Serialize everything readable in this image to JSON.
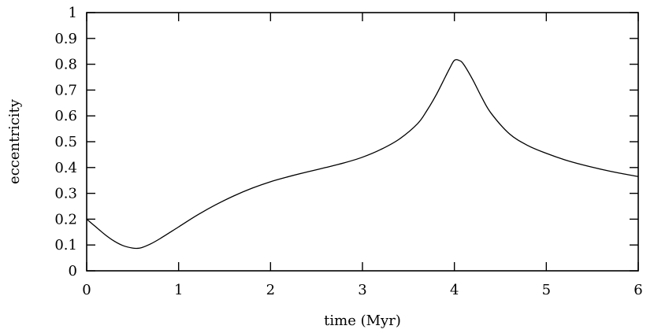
{
  "chart_data": {
    "type": "line",
    "title": "",
    "xlabel": "time (Myr)",
    "ylabel": "eccentricity",
    "xlim": [
      0,
      6
    ],
    "ylim": [
      0,
      1
    ],
    "grid": false,
    "legend": "none",
    "x_ticks": [
      "0",
      "1",
      "2",
      "3",
      "4",
      "5",
      "6"
    ],
    "y_ticks": [
      "0",
      "0.1",
      "0.2",
      "0.3",
      "0.4",
      "0.5",
      "0.6",
      "0.7",
      "0.8",
      "0.9",
      "1"
    ],
    "series": [
      {
        "color": "#000000",
        "x": [
          0,
          0.1,
          0.2,
          0.3,
          0.4,
          0.5,
          0.55,
          0.6,
          0.7,
          0.8,
          1.0,
          1.2,
          1.4,
          1.6,
          1.8,
          2.0,
          2.2,
          2.4,
          2.6,
          2.8,
          3.0,
          3.2,
          3.4,
          3.6,
          3.7,
          3.8,
          3.9,
          3.95,
          4.0,
          4.05,
          4.1,
          4.2,
          4.3,
          4.4,
          4.6,
          4.8,
          5.0,
          5.2,
          5.4,
          5.6,
          5.8,
          6.0
        ],
        "y": [
          0.2,
          0.17,
          0.14,
          0.115,
          0.097,
          0.088,
          0.087,
          0.09,
          0.105,
          0.125,
          0.17,
          0.215,
          0.255,
          0.29,
          0.32,
          0.345,
          0.365,
          0.383,
          0.4,
          0.418,
          0.44,
          0.47,
          0.51,
          0.57,
          0.62,
          0.68,
          0.75,
          0.785,
          0.815,
          0.815,
          0.8,
          0.74,
          0.67,
          0.61,
          0.53,
          0.485,
          0.455,
          0.43,
          0.41,
          0.393,
          0.378,
          0.365
        ]
      }
    ]
  }
}
